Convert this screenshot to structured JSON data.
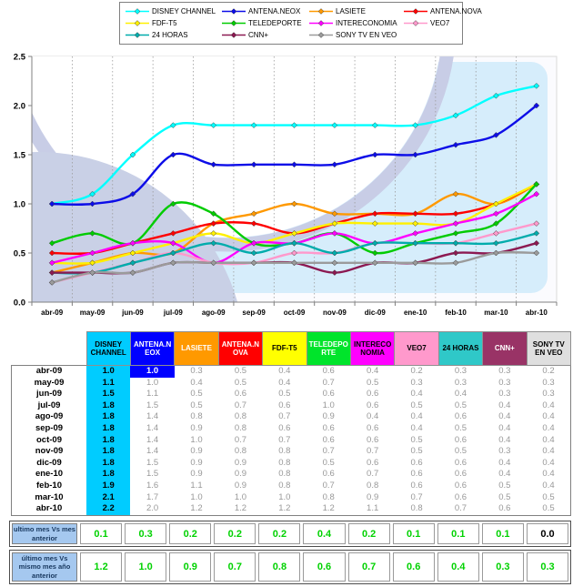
{
  "chart_data": {
    "type": "line",
    "line_style": "smooth-with-diamond-markers",
    "x": [
      "abr-09",
      "may-09",
      "jun-09",
      "jul-09",
      "ago-09",
      "sep-09",
      "oct-09",
      "nov-09",
      "dic-09",
      "ene-10",
      "feb-10",
      "mar-10",
      "abr-10"
    ],
    "ylim": [
      0,
      2.5
    ],
    "ytick_step": 0.5,
    "ytick_labels": [
      "0.0",
      "0.5",
      "1.0",
      "1.5",
      "2.0",
      "2.5"
    ],
    "xlabel": "",
    "ylabel": "",
    "grid": "vertical-dashed",
    "legend_position": "top",
    "series": [
      {
        "name": "DISNEY CHANNEL",
        "color": "#00FFFF",
        "header_bg": "#00CCFF",
        "header_fg": "#000000",
        "values": [
          1.0,
          1.1,
          1.5,
          1.8,
          1.8,
          1.8,
          1.8,
          1.8,
          1.8,
          1.8,
          1.9,
          2.1,
          2.2
        ]
      },
      {
        "name": "ANTENA.NEOX",
        "color": "#0D0DE8",
        "header_bg": "#0000FF",
        "header_fg": "#FFFFFF",
        "values": [
          1.0,
          1.0,
          1.1,
          1.5,
          1.4,
          1.4,
          1.4,
          1.4,
          1.5,
          1.5,
          1.6,
          1.7,
          2.0
        ]
      },
      {
        "name": "LASIETE",
        "color": "#FF9900",
        "header_bg": "#FF9900",
        "header_fg": "#FFFFFF",
        "values": [
          0.3,
          0.4,
          0.5,
          0.5,
          0.8,
          0.9,
          1.0,
          0.9,
          0.9,
          0.9,
          1.1,
          1.0,
          1.2
        ]
      },
      {
        "name": "ANTENA.NOVA",
        "color": "#FF0000",
        "header_bg": "#FF0000",
        "header_fg": "#FFFFFF",
        "values": [
          0.5,
          0.5,
          0.6,
          0.7,
          0.8,
          0.8,
          0.7,
          0.8,
          0.9,
          0.9,
          0.9,
          1.0,
          1.2
        ]
      },
      {
        "name": "FDF-T5",
        "color": "#FFF000",
        "header_bg": "#FFFF00",
        "header_fg": "#000000",
        "values": [
          0.4,
          0.4,
          0.5,
          0.6,
          0.7,
          0.6,
          0.7,
          0.8,
          0.8,
          0.8,
          0.8,
          1.0,
          1.2
        ]
      },
      {
        "name": "TELEDEPORTE",
        "color": "#00CC00",
        "header_bg": "#00E42B",
        "header_fg": "#FFFFFF",
        "values": [
          0.6,
          0.7,
          0.6,
          1.0,
          0.9,
          0.6,
          0.6,
          0.7,
          0.5,
          0.6,
          0.7,
          0.8,
          1.2
        ]
      },
      {
        "name": "INTERECONOMIA",
        "color": "#FF00FF",
        "header_bg": "#FF00FF",
        "header_fg": "#000000",
        "values": [
          0.4,
          0.5,
          0.6,
          0.6,
          0.4,
          0.6,
          0.6,
          0.7,
          0.6,
          0.7,
          0.8,
          0.9,
          1.1
        ]
      },
      {
        "name": "VEO7",
        "color": "#FF99CC",
        "header_bg": "#FF99CC",
        "header_fg": "#000000",
        "values": [
          0.2,
          0.3,
          0.4,
          0.5,
          0.4,
          0.4,
          0.5,
          0.5,
          0.6,
          0.6,
          0.6,
          0.7,
          0.8
        ]
      },
      {
        "name": "24 HORAS",
        "color": "#00ACAC",
        "header_bg": "#2FC8C8",
        "header_fg": "#000000",
        "values": [
          0.3,
          0.3,
          0.4,
          0.5,
          0.6,
          0.5,
          0.6,
          0.5,
          0.6,
          0.6,
          0.6,
          0.6,
          0.7
        ]
      },
      {
        "name": "CNN+",
        "color": "#8C1A52",
        "header_bg": "#993366",
        "header_fg": "#FFFFFF",
        "values": [
          0.3,
          0.3,
          0.3,
          0.4,
          0.4,
          0.4,
          0.4,
          0.3,
          0.4,
          0.4,
          0.5,
          0.5,
          0.6
        ]
      },
      {
        "name": "SONY TV EN VEO",
        "color": "#9B9B9B",
        "header_bg": "#DFDFDF",
        "header_fg": "#000000",
        "values": [
          0.2,
          0.3,
          0.3,
          0.4,
          0.4,
          0.4,
          0.4,
          0.4,
          0.4,
          0.4,
          0.4,
          0.5,
          0.5
        ]
      }
    ]
  },
  "table": {
    "first_column_bg": "#00CCFF",
    "first_column_fg": "#000000",
    "highlight_cell": {
      "row_month": "abr-09",
      "channel": "ANTENA.NEOX",
      "bg": "#0000FF",
      "fg": "#FFFFFF"
    }
  },
  "summaries": [
    {
      "label": "ultimo mes Vs mes anterior",
      "values": [
        0.1,
        0.3,
        0.2,
        0.2,
        0.2,
        0.4,
        0.2,
        0.1,
        0.1,
        0.1,
        0.0
      ]
    },
    {
      "label": "último mes Vs mismo mes año anterior",
      "values": [
        1.2,
        1.0,
        0.9,
        0.7,
        0.8,
        0.6,
        0.7,
        0.6,
        0.4,
        0.3,
        0.3
      ]
    }
  ],
  "colors": {
    "summary_positive": "#00D200",
    "summary_zero": "#000000",
    "summary_label_bg": "#A5C8EF",
    "summary_label_fg": "#17375E",
    "axis": "#808080",
    "gridline": "#9B9B9B",
    "plot_bg": "#FBFBFE",
    "plot_panel_blue": "#D6EDFB",
    "watermark_ring": "#C8CDE6",
    "watermark_disc": "#C9D0E6",
    "table_value_fg": "#989898"
  }
}
